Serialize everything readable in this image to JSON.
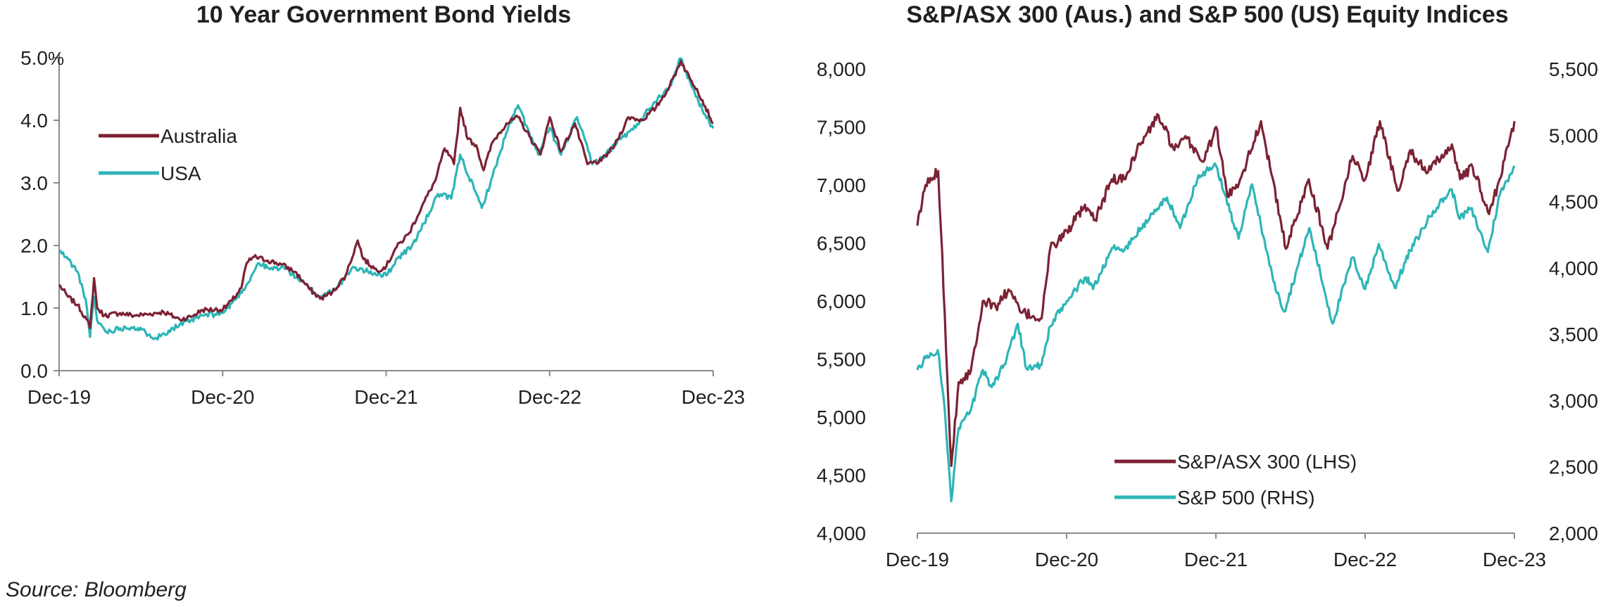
{
  "source": "Source: Bloomberg",
  "colors": {
    "australia": "#7B2234",
    "usa": "#2EB5B7",
    "axis": "#8a8a8a",
    "text": "#231f20"
  },
  "chart_data": [
    {
      "type": "line",
      "title": "10 Year Government Bond Yields",
      "ylabel": "%",
      "ylim": [
        0,
        5
      ],
      "yticks": [
        "0.0",
        "1.0",
        "2.0",
        "3.0",
        "4.0",
        "5.0"
      ],
      "xlim": [
        "2019-12-31",
        "2023-12-31"
      ],
      "xticks": [
        "Dec-19",
        "Dec-20",
        "Dec-21",
        "Dec-22",
        "Dec-23"
      ],
      "legend": "top-left",
      "series": [
        {
          "name": "Australia",
          "color": "#7B2234",
          "points": [
            [
              "2019-12-31",
              1.37
            ],
            [
              "2020-01-20",
              1.18
            ],
            [
              "2020-02-10",
              1.05
            ],
            [
              "2020-03-01",
              0.82
            ],
            [
              "2020-03-09",
              0.68
            ],
            [
              "2020-03-18",
              1.48
            ],
            [
              "2020-03-25",
              1.0
            ],
            [
              "2020-04-10",
              0.88
            ],
            [
              "2020-05-15",
              0.92
            ],
            [
              "2020-06-15",
              0.88
            ],
            [
              "2020-07-15",
              0.9
            ],
            [
              "2020-08-20",
              0.94
            ],
            [
              "2020-09-25",
              0.82
            ],
            [
              "2020-10-20",
              0.86
            ],
            [
              "2020-11-15",
              0.97
            ],
            [
              "2020-12-31",
              0.98
            ],
            [
              "2021-01-20",
              1.12
            ],
            [
              "2021-02-10",
              1.32
            ],
            [
              "2021-02-22",
              1.72
            ],
            [
              "2021-03-10",
              1.82
            ],
            [
              "2021-04-10",
              1.76
            ],
            [
              "2021-05-10",
              1.7
            ],
            [
              "2021-06-10",
              1.58
            ],
            [
              "2021-07-10",
              1.32
            ],
            [
              "2021-08-05",
              1.15
            ],
            [
              "2021-09-01",
              1.25
            ],
            [
              "2021-10-01",
              1.52
            ],
            [
              "2021-10-28",
              2.08
            ],
            [
              "2021-11-10",
              1.78
            ],
            [
              "2021-12-10",
              1.6
            ],
            [
              "2021-12-31",
              1.67
            ],
            [
              "2022-01-20",
              1.95
            ],
            [
              "2022-02-20",
              2.2
            ],
            [
              "2022-03-20",
              2.62
            ],
            [
              "2022-04-20",
              3.05
            ],
            [
              "2022-05-10",
              3.55
            ],
            [
              "2022-05-31",
              3.3
            ],
            [
              "2022-06-14",
              4.2
            ],
            [
              "2022-07-01",
              3.7
            ],
            [
              "2022-07-20",
              3.6
            ],
            [
              "2022-08-05",
              3.2
            ],
            [
              "2022-08-25",
              3.65
            ],
            [
              "2022-09-25",
              3.95
            ],
            [
              "2022-10-21",
              4.05
            ],
            [
              "2022-11-15",
              3.75
            ],
            [
              "2022-12-10",
              3.45
            ],
            [
              "2022-12-31",
              4.05
            ],
            [
              "2023-01-25",
              3.5
            ],
            [
              "2023-02-25",
              3.95
            ],
            [
              "2023-03-25",
              3.3
            ],
            [
              "2023-04-25",
              3.35
            ],
            [
              "2023-05-25",
              3.6
            ],
            [
              "2023-06-25",
              4.05
            ],
            [
              "2023-07-25",
              4.0
            ],
            [
              "2023-08-25",
              4.2
            ],
            [
              "2023-09-25",
              4.55
            ],
            [
              "2023-10-20",
              4.95
            ],
            [
              "2023-11-10",
              4.65
            ],
            [
              "2023-11-25",
              4.5
            ],
            [
              "2023-12-31",
              3.95
            ]
          ]
        },
        {
          "name": "USA",
          "color": "#2EB5B7",
          "points": [
            [
              "2019-12-31",
              1.92
            ],
            [
              "2020-01-20",
              1.78
            ],
            [
              "2020-02-10",
              1.58
            ],
            [
              "2020-02-28",
              1.15
            ],
            [
              "2020-03-09",
              0.54
            ],
            [
              "2020-03-18",
              1.18
            ],
            [
              "2020-03-25",
              0.8
            ],
            [
              "2020-04-15",
              0.62
            ],
            [
              "2020-05-15",
              0.68
            ],
            [
              "2020-06-15",
              0.7
            ],
            [
              "2020-07-20",
              0.58
            ],
            [
              "2020-08-04",
              0.52
            ],
            [
              "2020-09-10",
              0.68
            ],
            [
              "2020-10-20",
              0.8
            ],
            [
              "2020-11-15",
              0.88
            ],
            [
              "2020-12-31",
              0.92
            ],
            [
              "2021-01-20",
              1.08
            ],
            [
              "2021-02-20",
              1.35
            ],
            [
              "2021-03-20",
              1.72
            ],
            [
              "2021-04-15",
              1.62
            ],
            [
              "2021-05-15",
              1.66
            ],
            [
              "2021-06-15",
              1.48
            ],
            [
              "2021-07-15",
              1.3
            ],
            [
              "2021-08-05",
              1.18
            ],
            [
              "2021-09-10",
              1.32
            ],
            [
              "2021-10-20",
              1.65
            ],
            [
              "2021-11-20",
              1.58
            ],
            [
              "2021-12-31",
              1.52
            ],
            [
              "2022-01-25",
              1.8
            ],
            [
              "2022-02-25",
              1.98
            ],
            [
              "2022-03-25",
              2.35
            ],
            [
              "2022-04-25",
              2.82
            ],
            [
              "2022-05-25",
              2.75
            ],
            [
              "2022-06-14",
              3.45
            ],
            [
              "2022-07-15",
              2.9
            ],
            [
              "2022-08-01",
              2.6
            ],
            [
              "2022-08-25",
              3.1
            ],
            [
              "2022-09-25",
              3.8
            ],
            [
              "2022-10-21",
              4.24
            ],
            [
              "2022-11-15",
              3.8
            ],
            [
              "2022-12-05",
              3.45
            ],
            [
              "2022-12-31",
              3.88
            ],
            [
              "2023-01-25",
              3.45
            ],
            [
              "2023-03-02",
              4.05
            ],
            [
              "2023-04-05",
              3.3
            ],
            [
              "2023-05-05",
              3.45
            ],
            [
              "2023-06-05",
              3.7
            ],
            [
              "2023-07-05",
              3.85
            ],
            [
              "2023-08-20",
              4.28
            ],
            [
              "2023-09-25",
              4.55
            ],
            [
              "2023-10-19",
              4.99
            ],
            [
              "2023-11-10",
              4.6
            ],
            [
              "2023-11-28",
              4.3
            ],
            [
              "2023-12-31",
              3.87
            ]
          ]
        }
      ]
    },
    {
      "type": "line",
      "title": "S&P/ASX 300 (Aus.) and S&P 500 (US) Equity Indices",
      "ylim_left": [
        4000,
        8000
      ],
      "yticks_left": [
        "4,000",
        "4,500",
        "5,000",
        "5,500",
        "6,000",
        "6,500",
        "7,000",
        "7,500",
        "8,000"
      ],
      "ylim_right": [
        2000,
        5500
      ],
      "yticks_right": [
        "2,000",
        "2,500",
        "3,000",
        "3,500",
        "4,000",
        "4,500",
        "5,000",
        "5,500"
      ],
      "xlim": [
        "2019-12-31",
        "2023-12-31"
      ],
      "xticks": [
        "Dec-19",
        "Dec-20",
        "Dec-21",
        "Dec-22",
        "Dec-23"
      ],
      "legend": "bottom-right",
      "series": [
        {
          "name": "S&P/ASX 300 (LHS)",
          "axis": "left",
          "color": "#7B2234",
          "points": [
            [
              "2019-12-31",
              6650
            ],
            [
              "2020-01-20",
              7000
            ],
            [
              "2020-02-20",
              7120
            ],
            [
              "2020-03-01",
              6400
            ],
            [
              "2020-03-10",
              5600
            ],
            [
              "2020-03-23",
              4580
            ],
            [
              "2020-04-10",
              5300
            ],
            [
              "2020-05-10",
              5400
            ],
            [
              "2020-06-08",
              6000
            ],
            [
              "2020-07-10",
              5950
            ],
            [
              "2020-08-10",
              6100
            ],
            [
              "2020-09-10",
              5900
            ],
            [
              "2020-10-30",
              5850
            ],
            [
              "2020-11-20",
              6450
            ],
            [
              "2020-12-31",
              6600
            ],
            [
              "2021-02-10",
              6800
            ],
            [
              "2021-03-10",
              6700
            ],
            [
              "2021-04-20",
              7050
            ],
            [
              "2021-05-20",
              7050
            ],
            [
              "2021-06-20",
              7300
            ],
            [
              "2021-08-12",
              7600
            ],
            [
              "2021-09-20",
              7300
            ],
            [
              "2021-10-20",
              7400
            ],
            [
              "2021-11-30",
              7200
            ],
            [
              "2021-12-31",
              7500
            ],
            [
              "2022-01-28",
              6900
            ],
            [
              "2022-02-28",
              7050
            ],
            [
              "2022-04-20",
              7550
            ],
            [
              "2022-05-15",
              7100
            ],
            [
              "2022-06-20",
              6450
            ],
            [
              "2022-08-15",
              7050
            ],
            [
              "2022-09-30",
              6450
            ],
            [
              "2022-11-30",
              7250
            ],
            [
              "2022-12-31",
              7050
            ],
            [
              "2023-02-05",
              7550
            ],
            [
              "2023-03-20",
              6950
            ],
            [
              "2023-04-20",
              7300
            ],
            [
              "2023-05-31",
              7100
            ],
            [
              "2023-07-31",
              7350
            ],
            [
              "2023-08-20",
              7050
            ],
            [
              "2023-09-20",
              7150
            ],
            [
              "2023-10-30",
              6750
            ],
            [
              "2023-11-25",
              7050
            ],
            [
              "2023-12-31",
              7550
            ]
          ]
        },
        {
          "name": "S&P 500 (RHS)",
          "axis": "right",
          "color": "#2EB5B7",
          "points": [
            [
              "2019-12-31",
              3230
            ],
            [
              "2020-01-20",
              3320
            ],
            [
              "2020-02-19",
              3380
            ],
            [
              "2020-03-05",
              3000
            ],
            [
              "2020-03-23",
              2240
            ],
            [
              "2020-04-10",
              2790
            ],
            [
              "2020-05-10",
              2930
            ],
            [
              "2020-06-08",
              3230
            ],
            [
              "2020-06-30",
              3100
            ],
            [
              "2020-07-30",
              3270
            ],
            [
              "2020-09-02",
              3580
            ],
            [
              "2020-09-23",
              3240
            ],
            [
              "2020-10-30",
              3270
            ],
            [
              "2020-11-20",
              3560
            ],
            [
              "2020-12-31",
              3750
            ],
            [
              "2021-02-15",
              3930
            ],
            [
              "2021-03-05",
              3840
            ],
            [
              "2021-04-20",
              4150
            ],
            [
              "2021-05-20",
              4130
            ],
            [
              "2021-06-30",
              4300
            ],
            [
              "2021-09-02",
              4530
            ],
            [
              "2021-10-04",
              4300
            ],
            [
              "2021-11-18",
              4700
            ],
            [
              "2021-12-31",
              4770
            ],
            [
              "2022-02-24",
              4220
            ],
            [
              "2022-03-29",
              4630
            ],
            [
              "2022-05-20",
              3900
            ],
            [
              "2022-06-16",
              3670
            ],
            [
              "2022-08-16",
              4300
            ],
            [
              "2022-10-12",
              3580
            ],
            [
              "2022-11-30",
              4080
            ],
            [
              "2022-12-31",
              3840
            ],
            [
              "2023-02-02",
              4180
            ],
            [
              "2023-03-13",
              3850
            ],
            [
              "2023-04-20",
              4130
            ],
            [
              "2023-06-15",
              4430
            ],
            [
              "2023-07-31",
              4590
            ],
            [
              "2023-08-20",
              4370
            ],
            [
              "2023-09-15",
              4450
            ],
            [
              "2023-10-27",
              4120
            ],
            [
              "2023-11-25",
              4550
            ],
            [
              "2023-12-31",
              4770
            ]
          ]
        }
      ]
    }
  ]
}
